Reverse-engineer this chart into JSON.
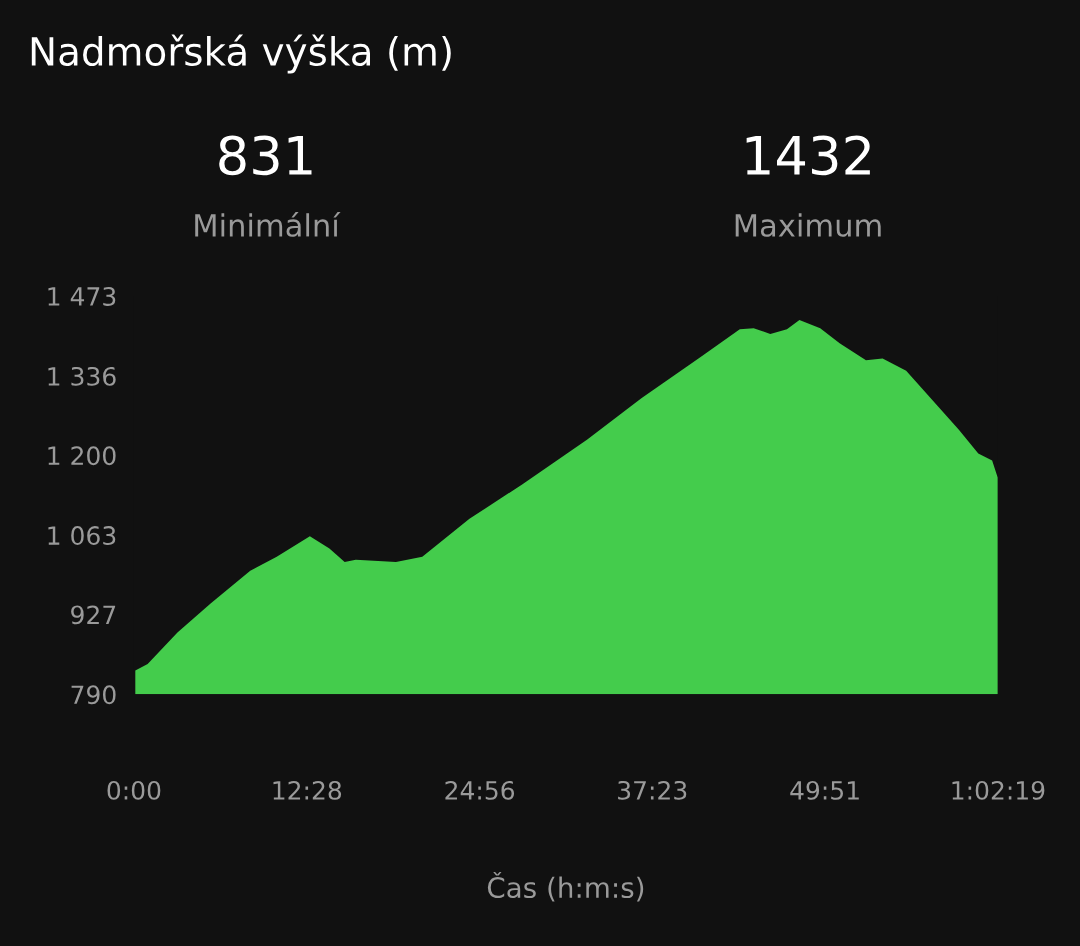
{
  "chart_data": {
    "type": "area",
    "title": "Nadmořská výška (m)",
    "xlabel": "Čas (h:m:s)",
    "annotations": [
      "831",
      "Minimální",
      "1432",
      "Maximum"
    ],
    "x": [
      0.1,
      0.99,
      3.14,
      5.53,
      8.39,
      10.3,
      12.69,
      14.1,
      15.2,
      16.0,
      18.9,
      20.8,
      24.2,
      28.0,
      32.7,
      36.6,
      40.9,
      43.7,
      44.7,
      45.9,
      47.1,
      48.0,
      49.5,
      50.9,
      52.8,
      54.0,
      55.7,
      59.5,
      60.9,
      61.9,
      62.3
    ],
    "series": [
      {
        "color": "#44cc4c",
        "values": [
          831,
          842,
          896,
          946,
          1002,
          1026,
          1061,
          1040,
          1017,
          1021,
          1017,
          1026,
          1091,
          1150,
          1227,
          1298,
          1369,
          1416,
          1418,
          1408,
          1416,
          1432,
          1418,
          1392,
          1363,
          1366,
          1345,
          1244,
          1203,
          1191,
          1162
        ]
      }
    ],
    "xlim": [
      0,
      62.317
    ],
    "ylim": [
      790,
      1473
    ],
    "xticks": [
      {
        "value": 0,
        "label": "0:00"
      },
      {
        "value": 12.467,
        "label": "12:28"
      },
      {
        "value": 24.933,
        "label": "24:56"
      },
      {
        "value": 37.383,
        "label": "37:23"
      },
      {
        "value": 49.85,
        "label": "49:51"
      },
      {
        "value": 62.317,
        "label": "1:02:19"
      }
    ],
    "yticks": [
      {
        "value": 790,
        "label": "790"
      },
      {
        "value": 927,
        "label": "927"
      },
      {
        "value": 1063,
        "label": "1 063"
      },
      {
        "value": 1200,
        "label": "1 200"
      },
      {
        "value": 1336,
        "label": "1 336"
      },
      {
        "value": 1473,
        "label": "1 473"
      }
    ],
    "grid": false,
    "legend": false
  }
}
